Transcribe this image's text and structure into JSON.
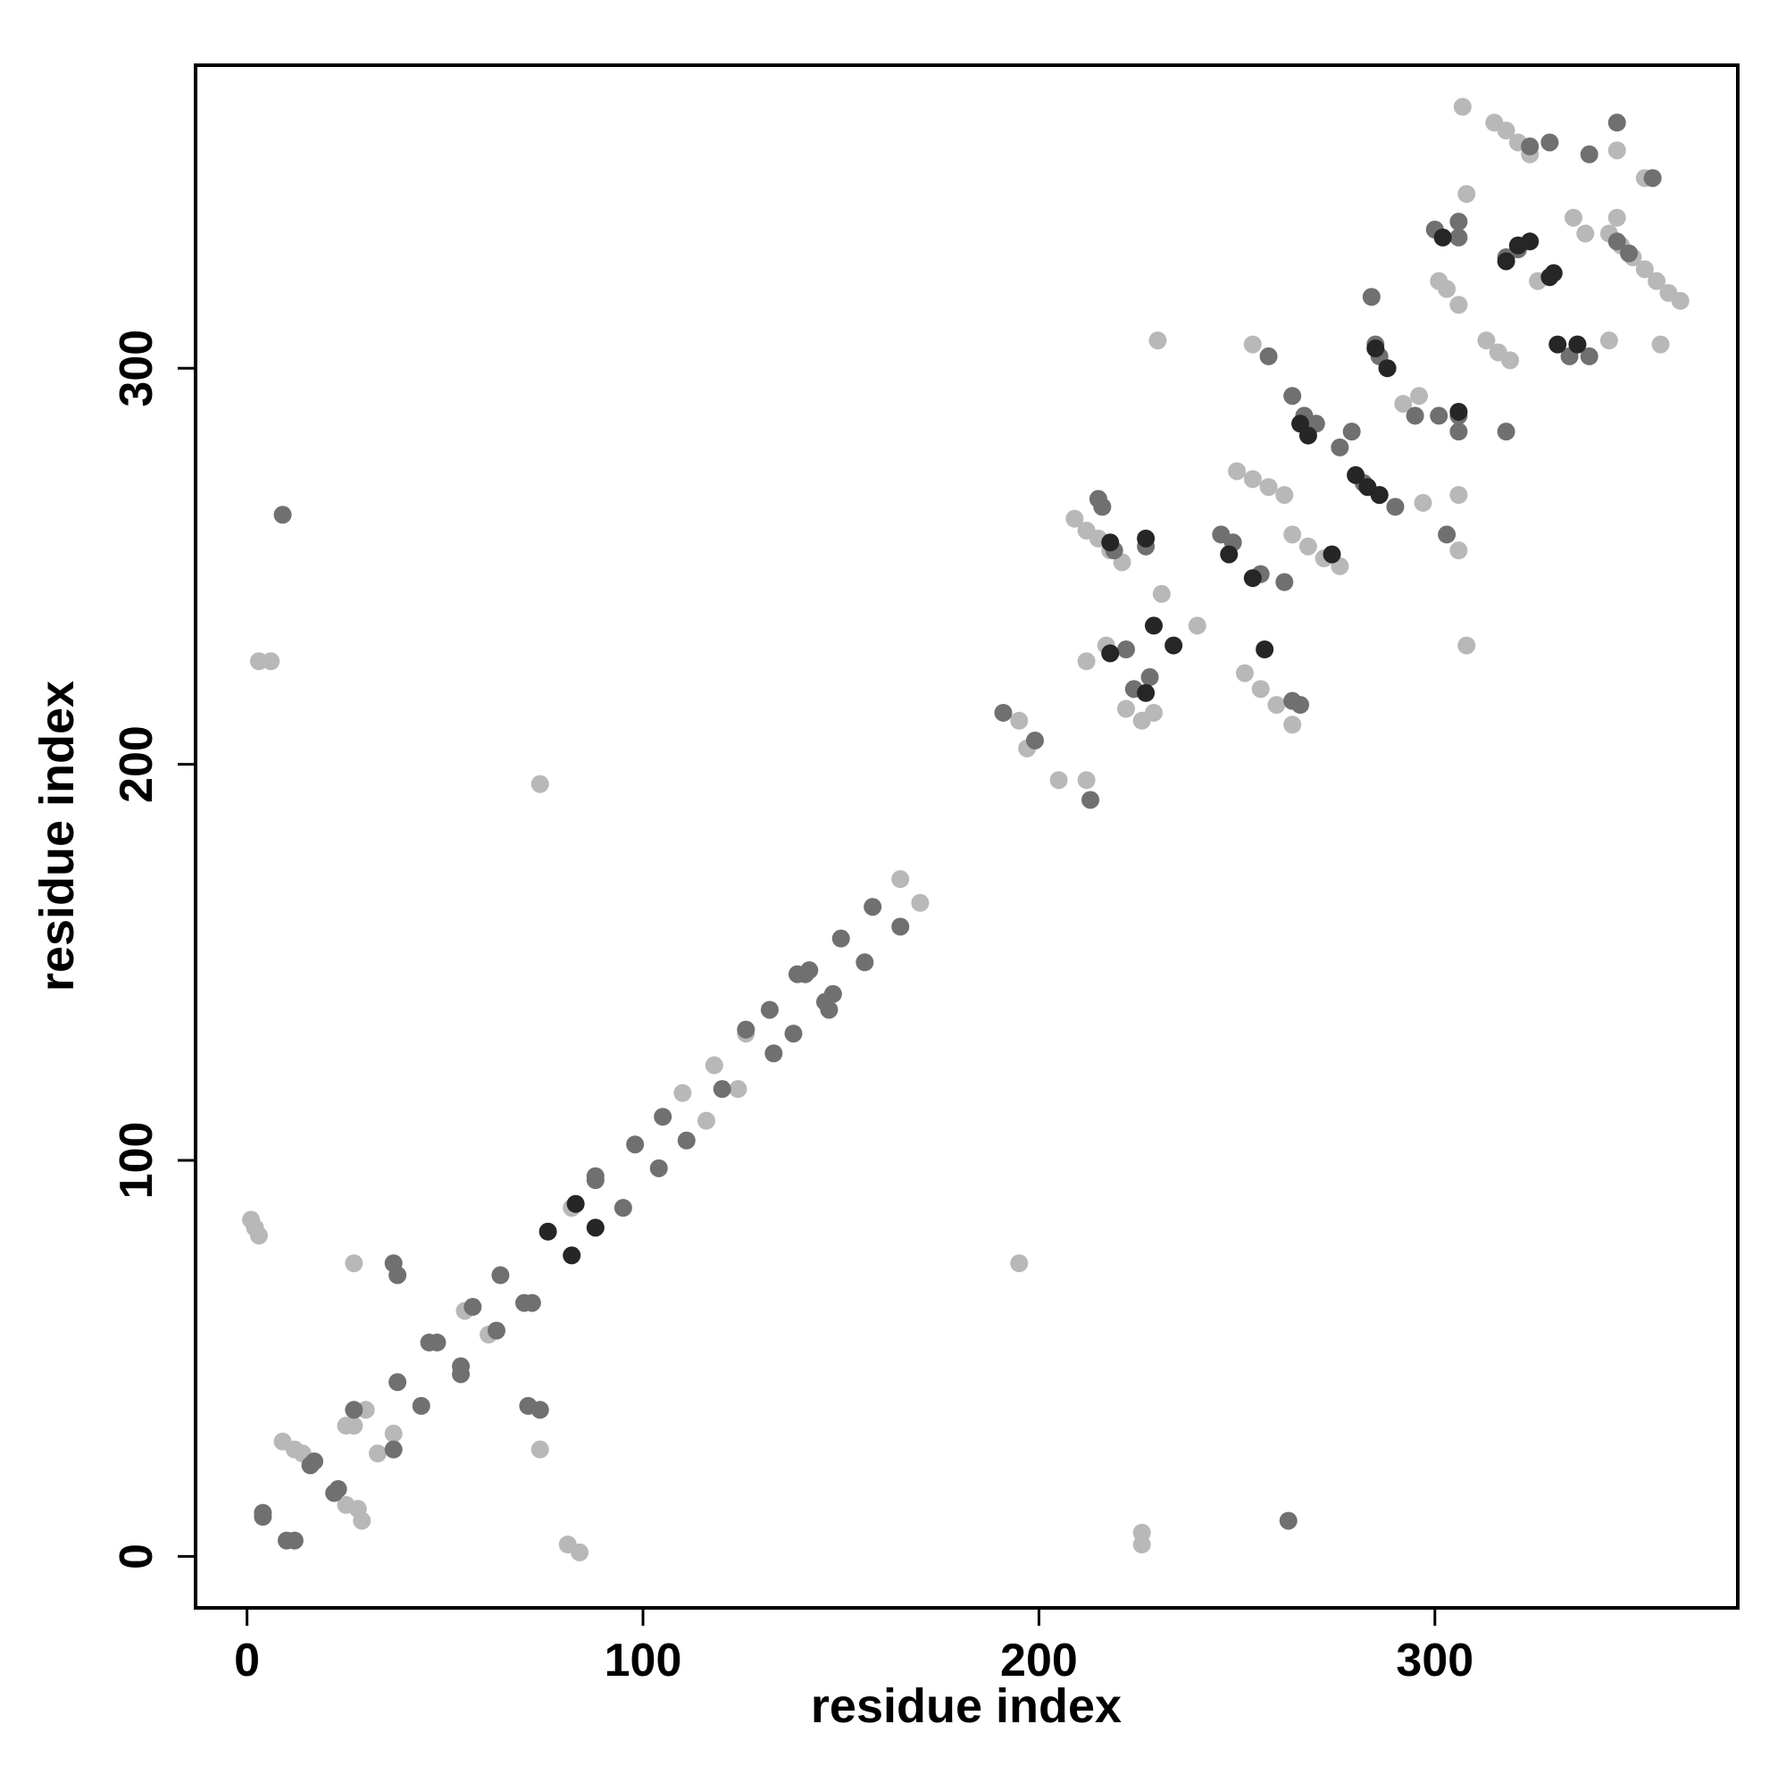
{
  "chart_data": {
    "type": "scatter",
    "xlabel": "residue index",
    "ylabel": "residue index",
    "xlim": [
      -13,
      376.5
    ],
    "ylim": [
      -13,
      376.5
    ],
    "xticks": [
      0,
      100,
      200,
      300
    ],
    "yticks": [
      0,
      100,
      200,
      300
    ],
    "series": [
      {
        "color": "#b8b8b8",
        "x": [
          1,
          2,
          3,
          9,
          12,
          14,
          25,
          27,
          25,
          28,
          29,
          30,
          33,
          37,
          27,
          3,
          6,
          74,
          74,
          55,
          61,
          81,
          84,
          82,
          88,
          110,
          116,
          118,
          124,
          126,
          165,
          170,
          195,
          226,
          226,
          195,
          197,
          205,
          212,
          209,
          212,
          215,
          218,
          221,
          252,
          256,
          260,
          264,
          250,
          254,
          258,
          262,
          264,
          268,
          272,
          276,
          292,
          296,
          315,
          318,
          321,
          324,
          344,
          347,
          350,
          353,
          356,
          359,
          362,
          301,
          303,
          306,
          313,
          316,
          319,
          307,
          308,
          308,
          306,
          306,
          297,
          344,
          357,
          230,
          254,
          217,
          212,
          222,
          226,
          229,
          231,
          240,
          326,
          335,
          338,
          346,
          346,
          353
        ],
        "values": [
          85,
          83,
          81,
          29,
          27,
          26,
          33,
          33,
          13,
          12,
          9,
          37,
          26,
          31,
          74,
          226,
          226,
          195,
          27,
          62,
          56,
          3,
          1,
          88,
          83,
          117,
          110,
          124,
          118,
          132,
          171,
          165,
          74,
          6,
          3,
          211,
          204,
          196,
          196,
          262,
          259,
          257,
          254,
          251,
          223,
          219,
          215,
          210,
          274,
          272,
          270,
          268,
          258,
          255,
          252,
          250,
          291,
          293,
          362,
          360,
          357,
          354,
          334,
          331,
          328,
          325,
          322,
          319,
          317,
          322,
          320,
          316,
          307,
          304,
          302,
          366,
          344,
          230,
          254,
          268,
          266,
          307,
          306,
          307,
          306,
          230,
          226,
          214,
          211,
          213,
          243,
          235,
          322,
          338,
          334,
          338,
          355,
          348
        ]
      },
      {
        "color": "#707070",
        "x": [
          9,
          4,
          4,
          10,
          12,
          16,
          17,
          22,
          23,
          27,
          37,
          38,
          37,
          38,
          44,
          46,
          48,
          54,
          54,
          57,
          63,
          64,
          70,
          72,
          71,
          74,
          88,
          88,
          95,
          98,
          104,
          105,
          111,
          120,
          126,
          132,
          133,
          138,
          139,
          141,
          142,
          146,
          148,
          147,
          150,
          156,
          158,
          165,
          191,
          199,
          213,
          215,
          216,
          219,
          227,
          224,
          228,
          222,
          246,
          249,
          256,
          262,
          264,
          266,
          258,
          264,
          267,
          270,
          276,
          279,
          284,
          285,
          286,
          288,
          282,
          286,
          290,
          295,
          301,
          306,
          306,
          303,
          300,
          306,
          306,
          318,
          324,
          329,
          339,
          346,
          355,
          336,
          339,
          334,
          346,
          349,
          318,
          321,
          263
        ],
        "values": [
          263,
          11,
          10,
          4,
          4,
          23,
          24,
          16,
          17,
          37,
          74,
          71,
          27,
          44,
          38,
          54,
          54,
          48,
          46,
          63,
          57,
          71,
          64,
          64,
          38,
          37,
          96,
          95,
          88,
          104,
          98,
          111,
          105,
          118,
          133,
          138,
          127,
          132,
          147,
          147,
          148,
          140,
          142,
          138,
          156,
          150,
          164,
          159,
          213,
          206,
          191,
          267,
          265,
          254,
          255,
          219,
          222,
          229,
          258,
          256,
          248,
          246,
          216,
          215,
          303,
          293,
          288,
          286,
          280,
          284,
          318,
          306,
          303,
          300,
          271,
          268,
          265,
          288,
          288,
          288,
          284,
          258,
          335,
          333,
          337,
          284,
          356,
          357,
          354,
          362,
          348,
          306,
          303,
          303,
          332,
          329,
          328,
          330,
          9
        ]
      },
      {
        "color": "#262626",
        "x": [
          76,
          82,
          83,
          88,
          218,
          227,
          229,
          234,
          218,
          227,
          248,
          254,
          257,
          266,
          268,
          274,
          280,
          283,
          286,
          285,
          288,
          302,
          306,
          321,
          324,
          329,
          330,
          318,
          331,
          336
        ],
        "values": [
          82,
          76,
          89,
          83,
          256,
          257,
          235,
          230,
          228,
          218,
          253,
          247,
          229,
          286,
          283,
          253,
          273,
          270,
          268,
          305,
          300,
          333,
          289,
          331,
          332,
          323,
          324,
          327,
          306,
          306
        ]
      }
    ]
  }
}
